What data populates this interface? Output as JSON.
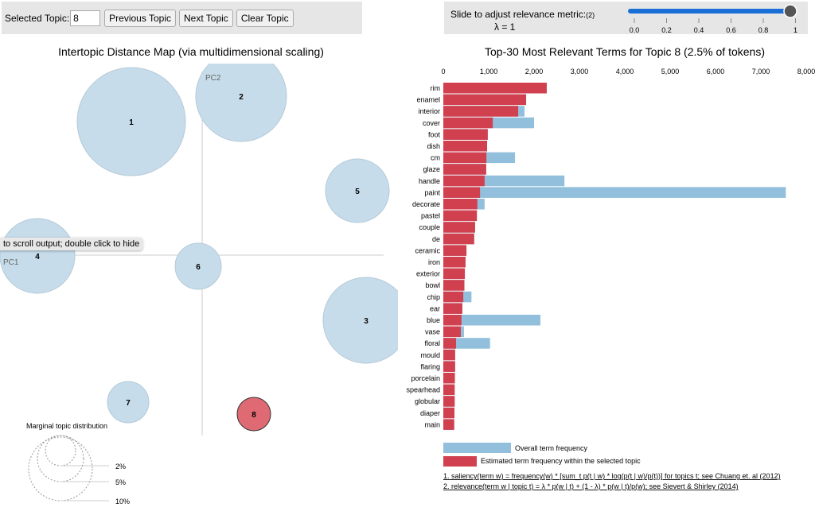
{
  "controls": {
    "selected_topic_label": "Selected Topic:",
    "selected_topic_value": "8",
    "previous": "Previous Topic",
    "next": "Next Topic",
    "clear": "Clear Topic"
  },
  "slider": {
    "label": "Slide to adjust relevance metric:",
    "footnote_ref": "(2)",
    "lambda_text": "λ = 1",
    "value": 1,
    "ticks": [
      "0.0",
      "0.2",
      "0.4",
      "0.6",
      "0.8",
      "1"
    ]
  },
  "left": {
    "title": "Intertopic Distance Map (via multidimensional scaling)",
    "pc1": "PC1",
    "pc2": "PC2",
    "tooltip": "to scroll output; double click to hide",
    "topics": [
      {
        "id": "1",
        "selected": false
      },
      {
        "id": "2",
        "selected": false
      },
      {
        "id": "3",
        "selected": false
      },
      {
        "id": "4",
        "selected": false
      },
      {
        "id": "5",
        "selected": false
      },
      {
        "id": "6",
        "selected": false
      },
      {
        "id": "7",
        "selected": false
      },
      {
        "id": "8",
        "selected": true
      }
    ],
    "marginal_title": "Marginal topic distribution",
    "marginal_labels": [
      "2%",
      "5%",
      "10%"
    ]
  },
  "colors": {
    "overall": "#92bfdb",
    "topic": "#d0404f",
    "circle": "#c6dcea",
    "selected_circle": "#e06a73",
    "slider": "#1a6fd6"
  },
  "chart_data": {
    "type": "bar",
    "orientation": "horizontal",
    "title": "Top-30 Most Relevant Terms for Topic 8 (2.5% of tokens)",
    "xlim": [
      0,
      8000
    ],
    "ticks": [
      "0",
      "1,000",
      "2,000",
      "3,000",
      "4,000",
      "5,000",
      "6,000",
      "7,000",
      "8,000"
    ],
    "categories": [
      "rim",
      "enamel",
      "interior",
      "cover",
      "foot",
      "dish",
      "cm",
      "glaze",
      "handle",
      "paint",
      "decorate",
      "pastel",
      "couple",
      "de",
      "ceramic",
      "iron",
      "exterior",
      "bowl",
      "chip",
      "ear",
      "blue",
      "vase",
      "floral",
      "mould",
      "flaring",
      "porcelain",
      "spearhead",
      "globular",
      "diaper",
      "main"
    ],
    "series": [
      {
        "name": "Overall term frequency",
        "values": [
          2280,
          1825,
          1790,
          2000,
          980,
          965,
          1580,
          945,
          2670,
          7550,
          910,
          740,
          700,
          680,
          510,
          490,
          475,
          465,
          620,
          420,
          2140,
          455,
          1030,
          260,
          260,
          255,
          250,
          250,
          245,
          240
        ]
      },
      {
        "name": "Estimated term frequency within the selected topic",
        "values": [
          2280,
          1825,
          1650,
          1090,
          980,
          965,
          950,
          945,
          910,
          810,
          750,
          740,
          700,
          680,
          510,
          490,
          475,
          465,
          440,
          420,
          400,
          385,
          280,
          260,
          260,
          255,
          250,
          250,
          245,
          240
        ]
      }
    ],
    "footnotes": [
      "1. saliency(term w) = frequency(w) * [sum_t p(t | w) * log(p(t | w)/p(t))] for topics t; see Chuang et. al (2012)",
      "2. relevance(term w | topic t) = λ * p(w | t) + (1 - λ) * p(w | t)/p(w); see Sievert & Shirley (2014)"
    ]
  }
}
